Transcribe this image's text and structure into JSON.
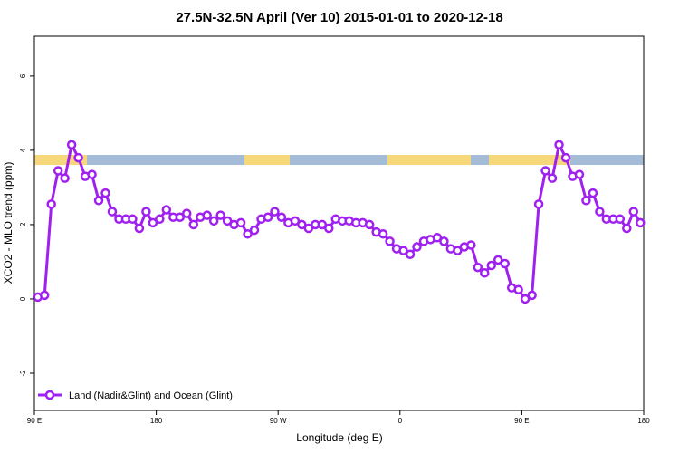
{
  "chart_data": {
    "type": "line",
    "title": "27.5N-32.5N April (Ver 10)   2015-01-01 to 2020-12-18",
    "x_label": "Longitude (deg E)",
    "y_label": "XCO2 - MLO trend (ppm)",
    "x": [
      92.5,
      97.5,
      102.5,
      107.5,
      112.5,
      117.5,
      122.5,
      127.5,
      132.5,
      137.5,
      142.5,
      147.5,
      152.5,
      157.5,
      162.5,
      167.5,
      172.5,
      177.5,
      182.5,
      187.5,
      192.5,
      197.5,
      202.5,
      207.5,
      212.5,
      217.5,
      222.5,
      227.5,
      232.5,
      237.5,
      242.5,
      247.5,
      252.5,
      257.5,
      262.5,
      267.5,
      272.5,
      277.5,
      282.5,
      287.5,
      292.5,
      297.5,
      302.5,
      307.5,
      312.5,
      317.5,
      322.5,
      327.5,
      332.5,
      337.5,
      342.5,
      347.5,
      352.5,
      357.5,
      362.5,
      367.5,
      372.5,
      377.5,
      382.5,
      387.5,
      392.5,
      397.5,
      402.5,
      407.5,
      412.5,
      417.5,
      422.5,
      427.5,
      432.5,
      437.5,
      442.5,
      447.5,
      452.5,
      457.5,
      462.5,
      467.5,
      472.5,
      477.5,
      482.5,
      487.5,
      492.5,
      497.5,
      502.5,
      507.5,
      512.5,
      517.5,
      522.5,
      527.5,
      532.5,
      537.5
    ],
    "series": [
      {
        "name": "Land (Nadir&Glint) and Ocean (Glint)",
        "color": "#a020f0",
        "values": [
          0.05,
          0.1,
          2.55,
          3.45,
          3.25,
          4.15,
          3.8,
          3.3,
          3.35,
          2.65,
          2.85,
          2.35,
          2.15,
          2.15,
          2.15,
          1.9,
          2.35,
          2.05,
          2.15,
          2.4,
          2.2,
          2.2,
          2.3,
          2.0,
          2.2,
          2.25,
          2.1,
          2.25,
          2.1,
          2.0,
          2.05,
          1.75,
          1.85,
          2.15,
          2.2,
          2.35,
          2.2,
          2.05,
          2.1,
          2.0,
          1.9,
          2.0,
          2.0,
          1.9,
          2.15,
          2.1,
          2.1,
          2.05,
          2.05,
          2.0,
          1.8,
          1.75,
          1.55,
          1.35,
          1.3,
          1.2,
          1.4,
          1.55,
          1.6,
          1.65,
          1.55,
          1.35,
          1.3,
          1.4,
          1.45,
          0.85,
          0.7,
          0.9,
          1.05,
          0.95,
          0.3,
          0.25,
          0.0,
          0.1,
          2.55,
          3.45,
          3.25,
          4.15,
          3.8,
          3.3,
          3.35,
          2.65,
          2.85,
          2.35,
          2.15,
          2.15,
          2.15,
          1.9,
          2.35,
          2.05
        ]
      }
    ],
    "xlim": [
      90,
      540
    ],
    "xticks": [
      {
        "value": 90,
        "label": "90 E"
      },
      180,
      {
        "value": 270,
        "label": "90 W"
      },
      {
        "value": 360,
        "label": "0"
      },
      {
        "value": 450,
        "label": "90 E"
      },
      {
        "value": 540,
        "label": "180"
      }
    ],
    "ylim": [
      -3,
      7.07
    ],
    "yticks": [
      -2,
      0,
      2,
      4,
      6
    ],
    "legend": "bottom-left"
  }
}
